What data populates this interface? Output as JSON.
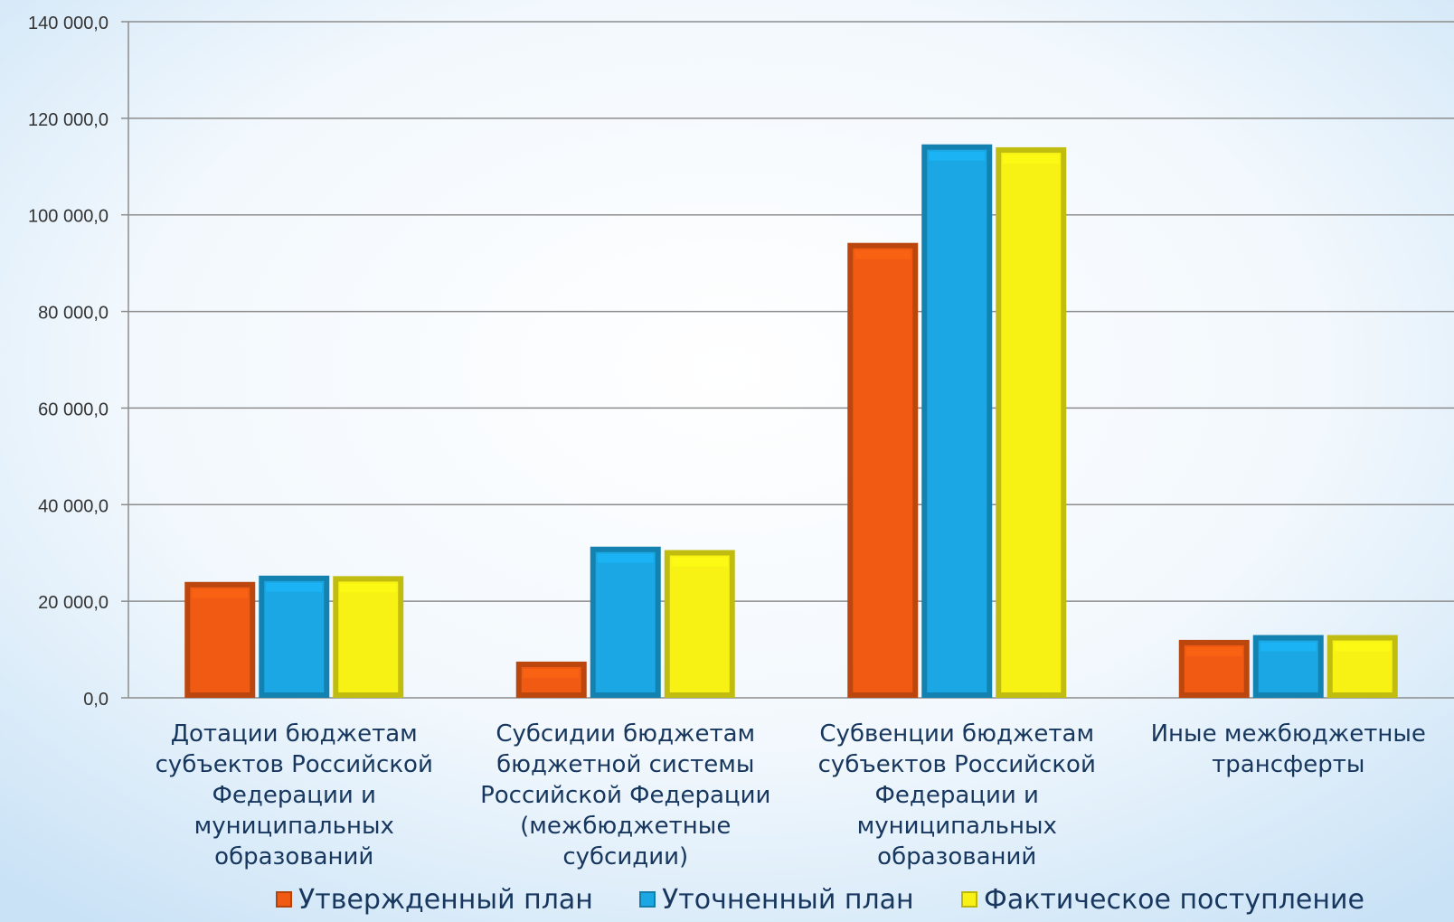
{
  "chart_data": {
    "type": "bar",
    "categories": [
      "Дотации бюджетам субъектов Российской Федерации и муниципальных образований",
      "Субсидии бюджетам бюджетной системы Российской Федерации (межбюджетные субсидии)",
      "Субвенции бюджетам субъектов Российской Федерации и муниципальных образований",
      "Иные межбюджетные трансферты"
    ],
    "category_label_lines": [
      [
        "Дотации бюджетам",
        "субъектов Российской",
        "Федерации и",
        "муниципальных",
        "образований"
      ],
      [
        "Субсидии бюджетам",
        "бюджетной системы",
        "Российской Федерации",
        "(межбюджетные",
        "субсидии)"
      ],
      [
        "Субвенции бюджетам",
        "субъектов Российской",
        "Федерации и",
        "муниципальных",
        "образований"
      ],
      [
        "Иные межбюджетные",
        "трансферты"
      ]
    ],
    "series": [
      {
        "name": "Утвержденный план",
        "color": "#F05A12",
        "values": [
          24000,
          7500,
          94200,
          12000
        ]
      },
      {
        "name": "Уточненный план",
        "color": "#1AA7E3",
        "values": [
          25300,
          31300,
          114600,
          13000
        ]
      },
      {
        "name": "Фактическое поступление",
        "color": "#F7F214",
        "values": [
          25200,
          30600,
          114000,
          13000
        ]
      }
    ],
    "ylim": [
      0,
      140000
    ],
    "yticks": [
      0,
      20000,
      40000,
      60000,
      80000,
      100000,
      120000,
      140000
    ],
    "ytick_labels": [
      "0,0",
      "20 000,0",
      "40 000,0",
      "60 000,0",
      "80 000,0",
      "100 000,0",
      "120 000,0",
      "140 000,0"
    ],
    "grid": true,
    "legend": "bottom"
  }
}
